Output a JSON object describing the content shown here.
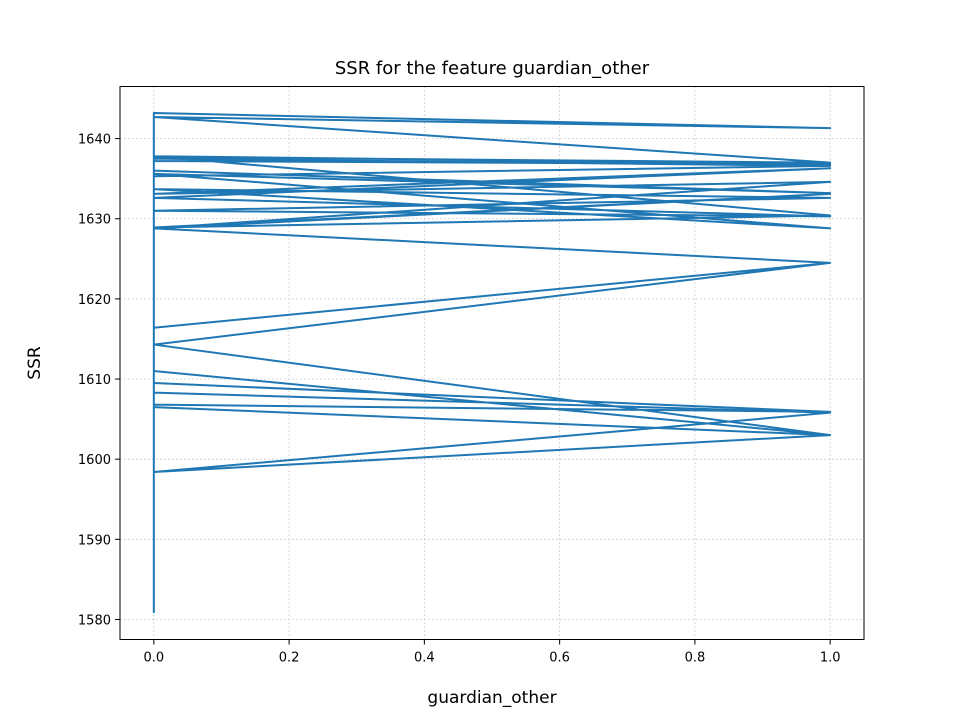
{
  "chart_data": {
    "type": "line",
    "title": "SSR for the feature guardian_other",
    "xlabel": "guardian_other",
    "ylabel": "SSR",
    "xlim": [
      -0.05,
      1.05
    ],
    "ylim": [
      1577.5,
      1646.5
    ],
    "xticks": [
      0.0,
      0.2,
      0.4,
      0.6,
      0.8,
      1.0
    ],
    "xtick_labels": [
      "0.0",
      "0.2",
      "0.4",
      "0.6",
      "0.8",
      "1.0"
    ],
    "yticks": [
      1580,
      1590,
      1600,
      1610,
      1620,
      1630,
      1640
    ],
    "ytick_labels": [
      "1580",
      "1590",
      "1600",
      "1610",
      "1620",
      "1630",
      "1640"
    ],
    "grid": true,
    "series": [
      {
        "color": "#1f77b4",
        "x": [
          0,
          0,
          1,
          0,
          1,
          0,
          0,
          1,
          0,
          0,
          1,
          0,
          1,
          0,
          1,
          0,
          1,
          0,
          1,
          0,
          1,
          0,
          1,
          0,
          1,
          0,
          1,
          0,
          0,
          1,
          0,
          1,
          0,
          1,
          0,
          0,
          1,
          0,
          1,
          0,
          0,
          1,
          0,
          0
        ],
        "y": [
          1580.8,
          1643.2,
          1641.3,
          1642.7,
          1637.0,
          1637.7,
          1637.5,
          1636.6,
          1635.3,
          1636.0,
          1633.2,
          1635.6,
          1628.8,
          1633.7,
          1632.6,
          1631.0,
          1630.3,
          1632.6,
          1636.3,
          1633.1,
          1634.6,
          1628.8,
          1633.1,
          1628.9,
          1630.4,
          1637.8,
          1636.8,
          1637.2,
          1628.8,
          1624.5,
          1616.4,
          1624.5,
          1614.3,
          1603.0,
          1611.0,
          1608.3,
          1605.8,
          1598.4,
          1603.0,
          1606.5,
          1606.8,
          1605.9,
          1609.5,
          1607.8
        ]
      }
    ]
  }
}
